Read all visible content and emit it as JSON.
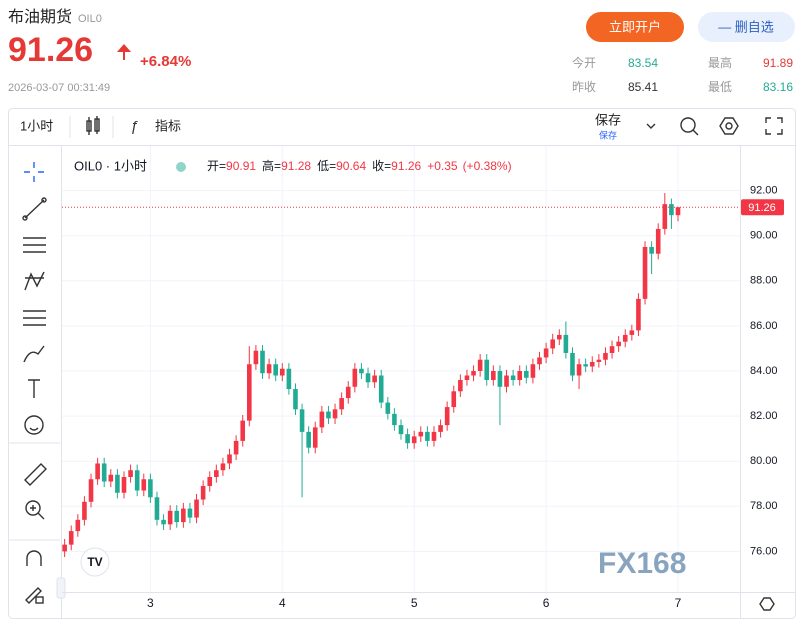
{
  "header": {
    "name": "布油期货",
    "code": "OIL0",
    "price": "91.26",
    "change": "+6.84%",
    "time": "2026-03-07 00:31:49"
  },
  "buttons": {
    "open_account": "立即开户",
    "remove_watch": "— 删自选"
  },
  "quote": [
    {
      "label": "今开",
      "value": "83.54"
    },
    {
      "label": "最高",
      "value": "91.89"
    },
    {
      "label": "昨收",
      "value": "85.41"
    },
    {
      "label": "最低",
      "value": "83.16"
    }
  ],
  "toolbar": {
    "interval": "1小时",
    "indicators": "指标",
    "save": "保存",
    "save_sub": "保存"
  },
  "chart_data": {
    "type": "candlestick",
    "title": "OIL0 · 1小时",
    "legend_labels": [
      "开=",
      "高=",
      "低=",
      "收="
    ],
    "change": "+0.35",
    "change_pct": "(+0.38%)",
    "up_color": "#f23645",
    "down_color": "#22ab94",
    "grid": true,
    "xlim": [
      2.33,
      7.47
    ],
    "xticks": [
      3,
      4,
      5,
      6,
      7
    ],
    "ylim": [
      74.2,
      93.8
    ],
    "yticks": [
      {
        "value": 76,
        "label": "76.00"
      },
      {
        "value": 78,
        "label": "78.00"
      },
      {
        "value": 80,
        "label": "80.00"
      },
      {
        "value": 82,
        "label": "82.00"
      },
      {
        "value": 84,
        "label": "84.00"
      },
      {
        "value": 86,
        "label": "86.00"
      },
      {
        "value": 88,
        "label": "88.00"
      },
      {
        "value": 90,
        "label": "90.00"
      },
      {
        "value": 92,
        "label": "92.00"
      }
    ],
    "x": [
      2.35,
      2.4,
      2.45,
      2.5,
      2.55,
      2.6,
      2.65,
      2.7,
      2.75,
      2.8,
      2.85,
      2.9,
      2.95,
      3.0,
      3.05,
      3.1,
      3.15,
      3.2,
      3.25,
      3.3,
      3.35,
      3.4,
      3.45,
      3.5,
      3.55,
      3.6,
      3.65,
      3.7,
      3.75,
      3.8,
      3.85,
      3.9,
      3.95,
      4.0,
      4.05,
      4.1,
      4.15,
      4.2,
      4.25,
      4.3,
      4.35,
      4.4,
      4.45,
      4.5,
      4.55,
      4.6,
      4.65,
      4.7,
      4.75,
      4.8,
      4.85,
      4.9,
      4.95,
      5.0,
      5.05,
      5.1,
      5.15,
      5.2,
      5.25,
      5.3,
      5.35,
      5.4,
      5.45,
      5.5,
      5.55,
      5.6,
      5.65,
      5.7,
      5.75,
      5.8,
      5.85,
      5.9,
      5.95,
      6.0,
      6.05,
      6.1,
      6.15,
      6.2,
      6.25,
      6.3,
      6.35,
      6.4,
      6.45,
      6.5,
      6.55,
      6.6,
      6.65,
      6.7,
      6.75,
      6.8,
      6.85,
      6.9,
      6.95,
      7.0
    ],
    "open": [
      76.0,
      76.3,
      76.9,
      77.4,
      78.2,
      79.2,
      79.9,
      79.1,
      79.4,
      78.6,
      79.3,
      79.6,
      78.7,
      79.2,
      78.4,
      77.4,
      77.2,
      77.8,
      77.3,
      77.9,
      77.5,
      78.3,
      78.9,
      79.3,
      79.6,
      79.9,
      80.3,
      80.9,
      81.8,
      84.3,
      84.9,
      83.9,
      84.3,
      83.8,
      84.1,
      83.2,
      82.3,
      81.3,
      80.6,
      81.5,
      82.2,
      81.9,
      82.3,
      82.8,
      83.3,
      84.1,
      83.9,
      83.5,
      83.8,
      82.6,
      82.1,
      81.6,
      81.2,
      80.8,
      81.1,
      81.3,
      80.9,
      81.3,
      81.6,
      82.4,
      83.1,
      83.6,
      83.8,
      84.0,
      84.5,
      83.6,
      84.0,
      83.3,
      83.8,
      83.6,
      84.0,
      83.7,
      84.3,
      84.6,
      85.0,
      85.4,
      85.6,
      84.8,
      83.8,
      84.3,
      84.2,
      84.4,
      84.5,
      84.8,
      85.1,
      85.3,
      85.6,
      85.8,
      87.2,
      89.5,
      89.2,
      90.3,
      91.4,
      90.91
    ],
    "high": [
      76.55,
      77.15,
      77.65,
      78.45,
      79.45,
      80.15,
      80.15,
      79.65,
      79.65,
      79.55,
      79.85,
      79.85,
      79.45,
      79.45,
      78.65,
      77.65,
      78.05,
      78.05,
      78.15,
      78.15,
      78.55,
      79.15,
      79.55,
      79.85,
      80.15,
      80.55,
      81.15,
      82.05,
      85.1,
      85.15,
      85.15,
      84.55,
      84.55,
      84.35,
      84.35,
      83.45,
      82.55,
      81.55,
      81.75,
      82.45,
      82.45,
      82.55,
      83.05,
      83.55,
      84.35,
      84.35,
      84.15,
      84.05,
      84.05,
      82.85,
      82.35,
      81.85,
      81.45,
      81.35,
      81.55,
      81.55,
      81.55,
      81.85,
      82.65,
      83.35,
      83.85,
      84.05,
      84.25,
      84.75,
      84.75,
      84.25,
      84.25,
      84.05,
      84.05,
      84.25,
      84.25,
      84.55,
      84.85,
      85.25,
      85.65,
      85.85,
      86.2,
      85.05,
      84.55,
      84.55,
      84.65,
      84.75,
      85.05,
      85.35,
      85.55,
      85.85,
      86.05,
      87.45,
      89.75,
      89.75,
      90.55,
      91.89,
      91.65,
      91.28
    ],
    "low": [
      75.75,
      76.05,
      76.65,
      77.15,
      77.95,
      78.95,
      78.85,
      78.85,
      78.35,
      78.35,
      79.05,
      78.45,
      78.45,
      78.15,
      77.15,
      76.95,
      76.95,
      77.05,
      77.05,
      77.25,
      77.25,
      78.05,
      78.65,
      79.05,
      79.35,
      79.65,
      80.05,
      80.65,
      81.55,
      84.05,
      83.65,
      83.65,
      83.55,
      83.55,
      82.95,
      82.05,
      78.4,
      80.35,
      80.35,
      81.25,
      81.65,
      81.65,
      82.05,
      82.55,
      83.05,
      83.65,
      83.25,
      83.25,
      82.35,
      81.85,
      81.35,
      80.95,
      80.55,
      80.55,
      80.85,
      80.65,
      80.65,
      81.05,
      81.35,
      82.15,
      82.85,
      83.35,
      83.55,
      83.75,
      83.35,
      83.35,
      81.6,
      83.05,
      83.35,
      83.35,
      83.45,
      83.45,
      84.05,
      84.35,
      84.75,
      85.15,
      84.55,
      83.55,
      83.2,
      83.95,
      83.95,
      84.15,
      84.25,
      84.55,
      84.85,
      85.05,
      85.35,
      85.55,
      86.95,
      88.3,
      88.95,
      90.05,
      90.3,
      90.64
    ],
    "close": [
      76.3,
      76.9,
      77.4,
      78.2,
      79.2,
      79.9,
      79.1,
      79.4,
      78.6,
      79.3,
      79.6,
      78.7,
      79.2,
      78.4,
      77.4,
      77.2,
      77.8,
      77.3,
      77.9,
      77.5,
      78.3,
      78.9,
      79.3,
      79.6,
      79.9,
      80.3,
      80.9,
      81.8,
      84.3,
      84.9,
      83.9,
      84.3,
      83.8,
      84.1,
      83.2,
      82.3,
      81.3,
      80.6,
      81.5,
      82.2,
      81.9,
      82.3,
      82.8,
      83.3,
      84.1,
      83.9,
      83.5,
      83.8,
      82.6,
      82.1,
      81.6,
      81.2,
      80.8,
      81.1,
      81.3,
      80.9,
      81.3,
      81.6,
      82.4,
      83.1,
      83.6,
      83.8,
      84.0,
      84.5,
      83.6,
      84.0,
      83.3,
      83.8,
      83.6,
      84.0,
      83.7,
      84.3,
      84.6,
      85.0,
      85.4,
      85.6,
      84.8,
      83.8,
      84.3,
      84.2,
      84.4,
      84.5,
      84.8,
      85.1,
      85.3,
      85.6,
      85.8,
      87.2,
      89.5,
      89.2,
      90.3,
      91.4,
      90.91,
      91.26
    ]
  }
}
